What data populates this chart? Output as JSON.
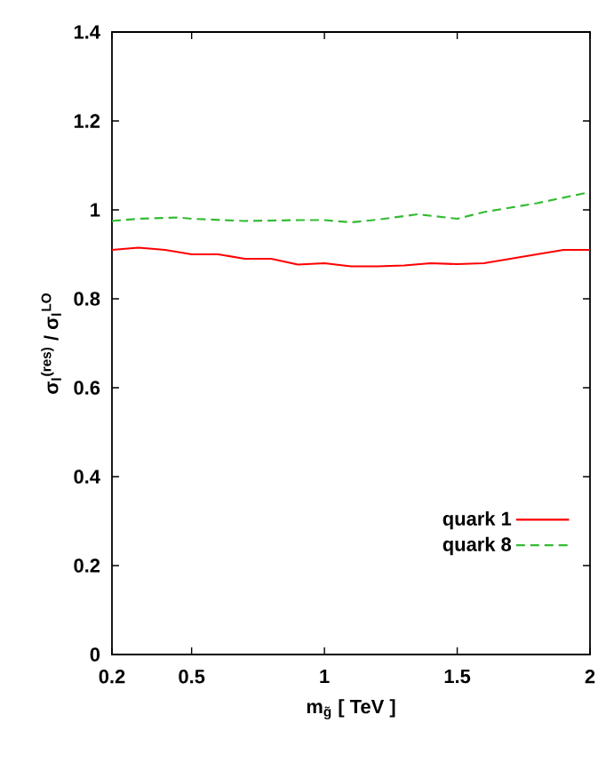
{
  "chart_data": {
    "type": "line",
    "xlabel": "m$_{g̃}$  [ TeV ]",
    "ylabel": "σ$_{l}$$^{(res)}$ / σ$_{l}$$^{LO}$",
    "xlim": [
      0.2,
      2
    ],
    "ylim": [
      0,
      1.4
    ],
    "xticks": [
      0.2,
      0.5,
      1,
      1.5,
      2
    ],
    "yticks": [
      0,
      0.2,
      0.4,
      0.6,
      0.8,
      1,
      1.2,
      1.4
    ],
    "grid": false,
    "legend": "bottom right",
    "marker": "none",
    "series": [
      {
        "name": "quark 1",
        "color": "#ff0000",
        "line_style": "solid",
        "x": [
          0.2,
          0.3,
          0.4,
          0.5,
          0.6,
          0.7,
          0.8,
          0.9,
          1.0,
          1.1,
          1.2,
          1.3,
          1.4,
          1.5,
          1.6,
          1.7,
          1.8,
          1.9,
          2.0
        ],
        "values": [
          0.91,
          0.915,
          0.91,
          0.9,
          0.9,
          0.89,
          0.89,
          0.877,
          0.88,
          0.873,
          0.873,
          0.875,
          0.88,
          0.878,
          0.88,
          0.89,
          0.9,
          0.91,
          0.91
        ]
      },
      {
        "name": "quark 8",
        "color": "#33bb33",
        "line_style": "dashed",
        "x": [
          0.2,
          0.3,
          0.45,
          0.5,
          0.7,
          0.9,
          1.0,
          1.1,
          1.2,
          1.35,
          1.5,
          1.6,
          1.8,
          2.0
        ],
        "values": [
          0.975,
          0.98,
          0.983,
          0.98,
          0.975,
          0.977,
          0.977,
          0.972,
          0.978,
          0.99,
          0.98,
          0.995,
          1.015,
          1.04
        ]
      }
    ]
  }
}
